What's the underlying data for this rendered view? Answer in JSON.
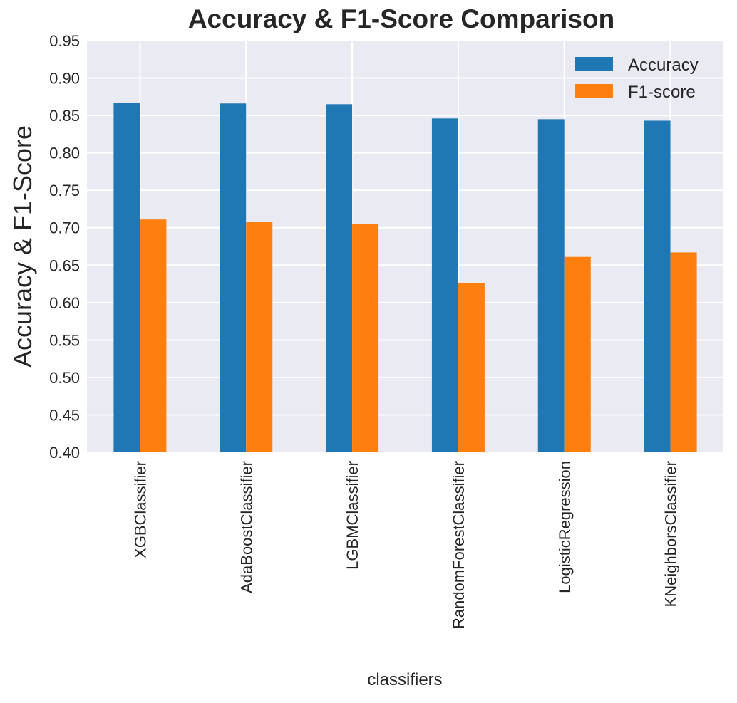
{
  "chart_data": {
    "type": "bar",
    "title": "Accuracy & F1-Score Comparison",
    "xlabel": "classifiers",
    "ylabel": "Accuracy & F1-Score",
    "categories": [
      "XGBClassifier",
      "AdaBoostClassifier",
      "LGBMClassifier",
      "RandomForestClassifier",
      "LogisticRegression",
      "KNeighborsClassifier"
    ],
    "series": [
      {
        "name": "Accuracy",
        "color": "#1f77b4",
        "values": [
          0.867,
          0.866,
          0.865,
          0.846,
          0.845,
          0.843
        ]
      },
      {
        "name": "F1-score",
        "color": "#ff7f0e",
        "values": [
          0.711,
          0.708,
          0.705,
          0.626,
          0.661,
          0.667
        ]
      }
    ],
    "ylim": [
      0.4,
      0.95
    ],
    "yticks": [
      "0.40",
      "0.45",
      "0.50",
      "0.55",
      "0.60",
      "0.65",
      "0.70",
      "0.75",
      "0.80",
      "0.85",
      "0.90",
      "0.95"
    ],
    "grid": true,
    "legend_position": "top-right",
    "background_color": "#eaeaf2",
    "grid_color": "#ffffff"
  }
}
